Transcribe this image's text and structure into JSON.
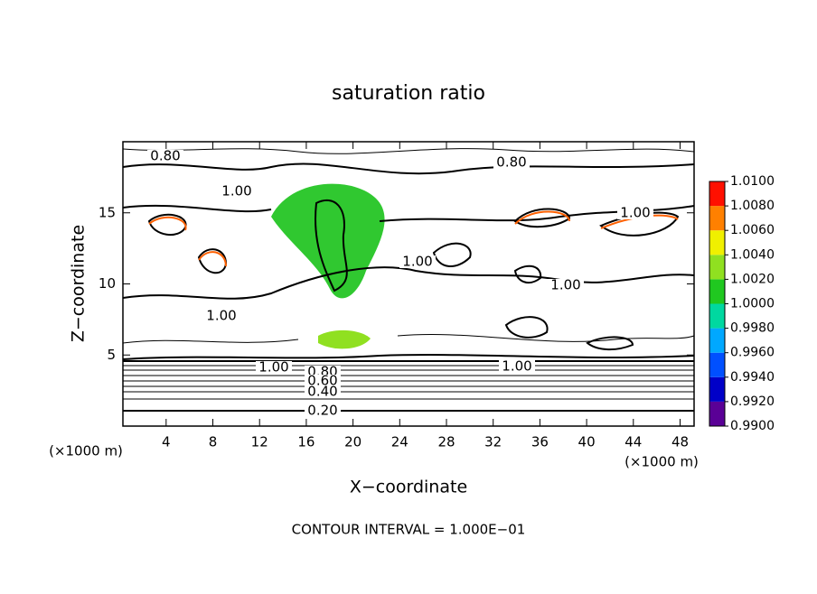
{
  "chart_data": {
    "type": "contour",
    "title": "saturation ratio",
    "x_label": "X−coordinate",
    "y_label": "Z−coordinate",
    "x_unit": "(×1000 m)",
    "y_unit": "(×1000 m)",
    "annotation": "CONTOUR INTERVAL = 1.000E−01",
    "xlim": [
      0.3,
      49.2
    ],
    "xticks": [
      4,
      8,
      12,
      16,
      20,
      24,
      28,
      32,
      36,
      40,
      44,
      48
    ],
    "ylim": [
      0,
      20
    ],
    "yticks": [
      5,
      10,
      15
    ],
    "contour_labels": [
      {
        "value": 0.8,
        "label": "0.80"
      },
      {
        "value": 0.8,
        "label": "0.80"
      },
      {
        "value": 1.0,
        "label": "1.00"
      },
      {
        "value": 1.0,
        "label": "1.00"
      },
      {
        "value": 1.0,
        "label": "1.00"
      },
      {
        "value": 1.0,
        "label": "1.00"
      },
      {
        "value": 1.0,
        "label": "1.00"
      },
      {
        "value": 1.0,
        "label": "1.00"
      },
      {
        "value": 1.0,
        "label": "1.00"
      },
      {
        "value": 0.8,
        "label": "0.80"
      },
      {
        "value": 0.6,
        "label": "0.60"
      },
      {
        "value": 0.4,
        "label": "0.40"
      },
      {
        "value": 0.2,
        "label": "0.20"
      }
    ],
    "colorbar": {
      "lim": [
        0.99,
        1.01
      ],
      "ticks": [
        {
          "value": 0.99,
          "label": "0.9900"
        },
        {
          "value": 0.992,
          "label": "0.9920"
        },
        {
          "value": 0.994,
          "label": "0.9940"
        },
        {
          "value": 0.996,
          "label": "0.9960"
        },
        {
          "value": 0.998,
          "label": "0.9980"
        },
        {
          "value": 1.0,
          "label": "1.0000"
        },
        {
          "value": 1.002,
          "label": "1.0020"
        },
        {
          "value": 1.004,
          "label": "1.0040"
        },
        {
          "value": 1.006,
          "label": "1.0060"
        },
        {
          "value": 1.008,
          "label": "1.0080"
        },
        {
          "value": 1.01,
          "label": "1.0100"
        }
      ],
      "colors": [
        "#5a0096",
        "#0000c8",
        "#0050ff",
        "#00a8ff",
        "#00d8a0",
        "#20c820",
        "#90e020",
        "#f0f000",
        "#ff8000",
        "#ff1000"
      ]
    }
  }
}
